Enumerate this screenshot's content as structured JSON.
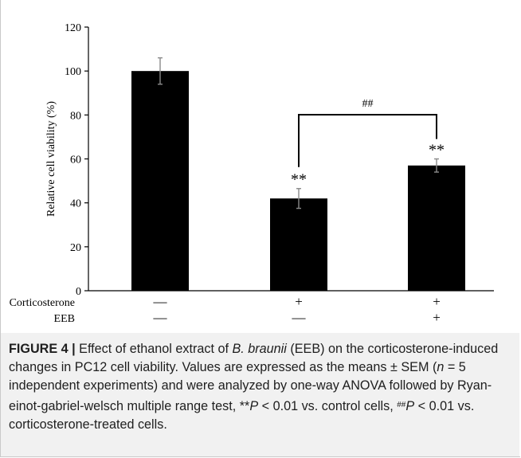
{
  "chart_data": {
    "type": "bar",
    "categories": [
      "Control",
      "Corticosterone",
      "Corticosterone + EEB"
    ],
    "values": [
      100,
      42,
      57
    ],
    "errors": [
      6,
      4.5,
      3
    ],
    "ylabel": "Relative cell viability (%)",
    "xlabel": "",
    "ylim": [
      0,
      120
    ],
    "yticks": [
      0,
      20,
      40,
      60,
      80,
      100,
      120
    ],
    "grid": false,
    "bar_color": "#000000",
    "significance": [
      "",
      "**",
      "**"
    ],
    "bracket": {
      "from": 1,
      "to": 2,
      "label": "##"
    },
    "treatment_rows": [
      {
        "label": "Corticosterone",
        "values": [
          "—",
          "+",
          "+"
        ]
      },
      {
        "label": "EEB",
        "values": [
          "—",
          "—",
          "+"
        ]
      }
    ]
  },
  "caption": {
    "figure_label": "FIGURE 4 |",
    "t1": " Effect of ethanol extract of ",
    "species": "B. braunii",
    "t2": " (EEB) on the corticosterone-induced changes in PC12 cell viability. Values are expressed as the means ± SEM (",
    "n_var": "n",
    "t3": " = 5 independent experiments) and were analyzed by one-way ANOVA followed by Ryan-einot-gabriel-welsch multiple range test, **",
    "p_var1": "P",
    "t4": " < 0.01 vs. control cells, ",
    "hash": "##",
    "p_var2": "P",
    "t5": " < 0.01 vs. corticosterone-treated cells."
  }
}
